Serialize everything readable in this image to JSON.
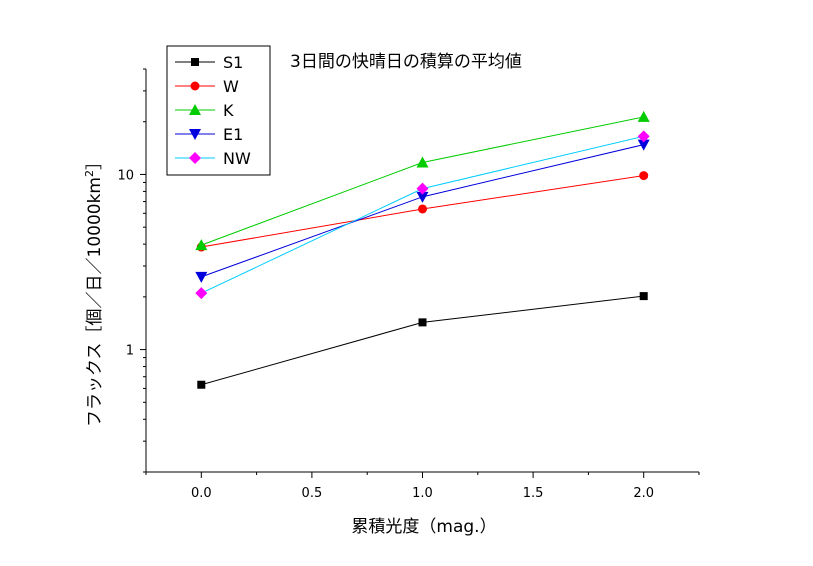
{
  "chart_data": {
    "type": "line",
    "title": "3日間の快晴日の積算の平均値",
    "xlabel": "累積光度（mag.）",
    "ylabel_main": "フラックス［個／日／10000km",
    "ylabel_sup": "2",
    "ylabel_close": "］",
    "xlim": [
      -0.25,
      2.25
    ],
    "ylim": [
      0.2,
      40
    ],
    "yscale": "log",
    "x_ticks": [
      0.0,
      0.5,
      1.0,
      1.5,
      2.0
    ],
    "x_tick_labels": [
      "0.0",
      "0.5",
      "1.0",
      "1.5",
      "2.0"
    ],
    "y_ticks": [
      1,
      10
    ],
    "y_tick_labels": [
      "1",
      "10"
    ],
    "grid": false,
    "legend_position": "top-left",
    "x": [
      0.0,
      1.0,
      2.0
    ],
    "series": [
      {
        "name": "S1",
        "color": "#000000",
        "marker": "square",
        "values": [
          0.63,
          1.43,
          2.02
        ]
      },
      {
        "name": "W",
        "color": "#ff0000",
        "marker": "circle",
        "values": [
          3.85,
          6.35,
          9.85
        ]
      },
      {
        "name": "K",
        "color": "#00cc00",
        "marker": "triangle-up",
        "values": [
          3.95,
          11.7,
          21.3
        ]
      },
      {
        "name": "E1",
        "color": "#0000dd",
        "marker": "triangle-down",
        "values": [
          2.6,
          7.45,
          14.8
        ]
      },
      {
        "name": "NW",
        "color": "#00ccff",
        "marker_color": "#ff00ff",
        "marker": "diamond",
        "values": [
          2.1,
          8.3,
          16.5
        ]
      }
    ]
  }
}
